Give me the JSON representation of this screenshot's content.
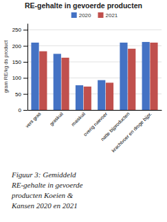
{
  "chart_data": {
    "type": "bar",
    "title": "RE-gehalte in gevoerde producten",
    "ylabel": "gram RE/kg ds product",
    "categories": [
      "vers gras",
      "graskuil",
      "maiskuil",
      "overig ruwvoer",
      "natte bijproducten",
      "krachtvoer en droge bijpr."
    ],
    "series": [
      {
        "name": "2020",
        "color": "#4472C4",
        "values": [
          210,
          175,
          77,
          93,
          210,
          212
        ]
      },
      {
        "name": "2021",
        "color": "#C0504D",
        "values": [
          183,
          163,
          73,
          85,
          191,
          210
        ]
      }
    ],
    "ylim": [
      0,
      270
    ],
    "yticks": [
      0,
      50,
      100,
      150,
      200,
      250
    ],
    "grid": true,
    "legend": "top",
    "caption": "Figuur 3: Gemiddeld\nRE-gehalte in gevoerde\nproducten Koeien &\nKansen 2020 en 2021"
  }
}
